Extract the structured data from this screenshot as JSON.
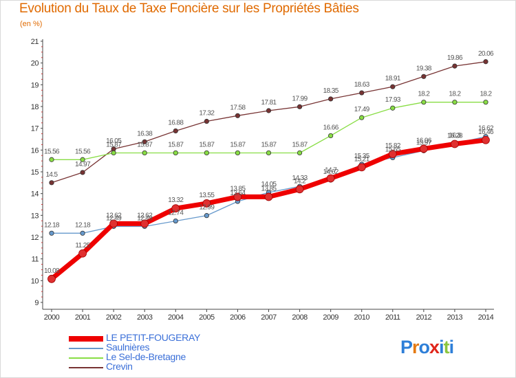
{
  "title": "Evolution du Taux de Taxe Foncière sur les Propriétés Bâties",
  "unit_label": "(en %)",
  "logo_text": "Proxiti",
  "chart_data": {
    "type": "line",
    "title": "Evolution du Taux de Taxe Foncière sur les Propriétés Bâties",
    "ylabel": "(en %)",
    "xlabel": "",
    "x": [
      2000,
      2001,
      2002,
      2003,
      2004,
      2005,
      2006,
      2007,
      2008,
      2009,
      2010,
      2011,
      2012,
      2013,
      2014
    ],
    "ylim": [
      9,
      21
    ],
    "yticks": [
      9,
      10,
      11,
      12,
      13,
      14,
      15,
      16,
      17,
      18,
      19,
      20,
      21
    ],
    "grid": false,
    "legend_position": "bottom-left",
    "series": [
      {
        "name": "LE PETIT-FOUGERAY",
        "color": "#ee0000",
        "values": [
          10.08,
          11.25,
          12.62,
          12.62,
          13.32,
          13.55,
          13.85,
          13.85,
          14.2,
          14.7,
          15.21,
          15.82,
          16.06,
          16.28,
          16.46
        ],
        "labels": [
          "10.08",
          "11.25",
          "12.62",
          "12.62",
          "13.32",
          "13.55",
          "13.85",
          "13.85",
          "14.2",
          "14.7",
          "15.21",
          "15.82",
          "16.06",
          "16.28",
          "16.46"
        ]
      },
      {
        "name": "Saulnières",
        "color": "#6699cc",
        "values": [
          12.18,
          12.18,
          12.49,
          12.49,
          12.74,
          12.99,
          13.64,
          14.05,
          14.33,
          14.62,
          15.35,
          15.65,
          15.97,
          16.3,
          16.62
        ],
        "labels": [
          "12.18",
          "12.18",
          "12.49",
          "12.49",
          "12.74",
          "12.99",
          "13.64",
          "14.05",
          "14.33",
          "14.62",
          "15.35",
          "15.65",
          "15.97",
          "16.3",
          "16.62"
        ]
      },
      {
        "name": "Le Sel-de-Bretagne",
        "color": "#88dd44",
        "values": [
          15.56,
          15.56,
          15.87,
          15.87,
          15.87,
          15.87,
          15.87,
          15.87,
          15.87,
          16.66,
          17.49,
          17.93,
          18.2,
          18.2,
          18.2
        ],
        "labels": [
          "15.56",
          "15.56",
          "15.87",
          "15.87",
          "15.87",
          "15.87",
          "15.87",
          "15.87",
          "15.87",
          "16.66",
          "17.49",
          "17.93",
          "18.2",
          "18.2",
          "18.2"
        ]
      },
      {
        "name": "Crevin",
        "color": "#773333",
        "values": [
          14.5,
          14.97,
          16.05,
          16.38,
          16.88,
          17.32,
          17.58,
          17.81,
          17.99,
          18.35,
          18.63,
          18.91,
          19.38,
          19.86,
          20.06
        ],
        "labels": [
          "14.5",
          "14.97",
          "16.05",
          "16.38",
          "16.88",
          "17.32",
          "17.58",
          "17.81",
          "17.99",
          "18.35",
          "18.63",
          "18.91",
          "19.38",
          "19.86",
          "20.06"
        ]
      }
    ]
  }
}
